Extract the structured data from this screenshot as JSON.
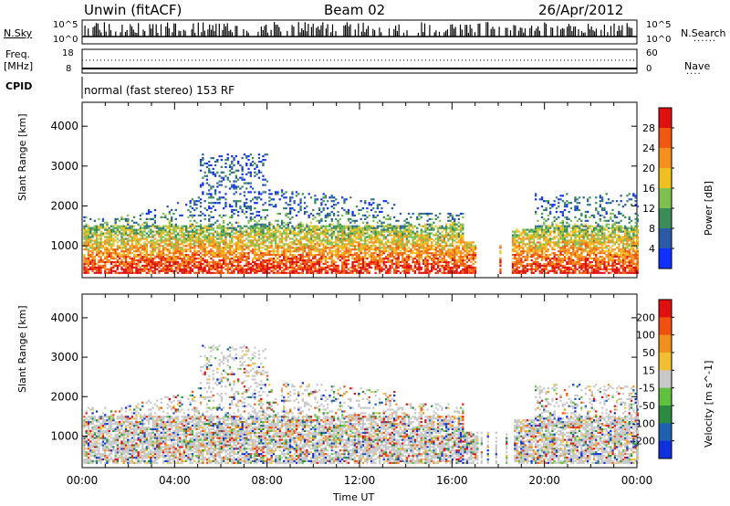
{
  "header": {
    "station": "Unwin (fitACF)",
    "beam": "Beam 02",
    "date": "26/Apr/2012"
  },
  "status_panels": {
    "nsky_label": "N.Sky",
    "nsearch_label": "N.Search",
    "freq_label_1": "Freq.",
    "freq_label_2": "[MHz]",
    "nave_label": "Nave",
    "cpid_label": "CPID",
    "cpid_text": "normal (fast stereo) 153 RF",
    "nsky_ticks": [
      "10^5",
      "10^0"
    ],
    "nsearch_ticks": [
      "10^5",
      "10^0"
    ],
    "freq_ticks": [
      "18",
      "8"
    ],
    "nave_ticks": [
      "60",
      "0"
    ]
  },
  "chart_data": [
    {
      "type": "heatmap",
      "title": "",
      "xlabel": "",
      "ylabel": "Slant Range [km]",
      "yticks": [
        "1000",
        "2000",
        "3000",
        "4000"
      ],
      "ylim": [
        200,
        4600
      ],
      "xlim_hours": [
        0,
        24
      ],
      "colorbar_label": "Power [dB]",
      "colorbar_ticks": [
        "4",
        "8",
        "12",
        "16",
        "20",
        "24",
        "28"
      ],
      "colorbar_colors": [
        "#1030ff",
        "#2a5aa8",
        "#3c8c5a",
        "#7fc050",
        "#f0c020",
        "#f59020",
        "#f05a10",
        "#e01010"
      ]
    },
    {
      "type": "heatmap",
      "title": "",
      "xlabel": "Time UT",
      "ylabel": "Slant Range [km]",
      "yticks": [
        "1000",
        "2000",
        "3000",
        "4000"
      ],
      "ylim": [
        200,
        4600
      ],
      "xticks": [
        "00:00",
        "04:00",
        "08:00",
        "12:00",
        "16:00",
        "20:00",
        "00:00"
      ],
      "xlim_hours": [
        0,
        24
      ],
      "colorbar_label": "Velocity [m s^-1]",
      "colorbar_ticks": [
        "200",
        "100",
        "50",
        "15",
        "-15",
        "-50",
        "-100",
        "-200"
      ],
      "colorbar_colors": [
        "#1030e0",
        "#2060b0",
        "#2a8a40",
        "#60c040",
        "#c8c8c8",
        "#f0c030",
        "#f09020",
        "#f05010",
        "#e01010"
      ]
    }
  ]
}
